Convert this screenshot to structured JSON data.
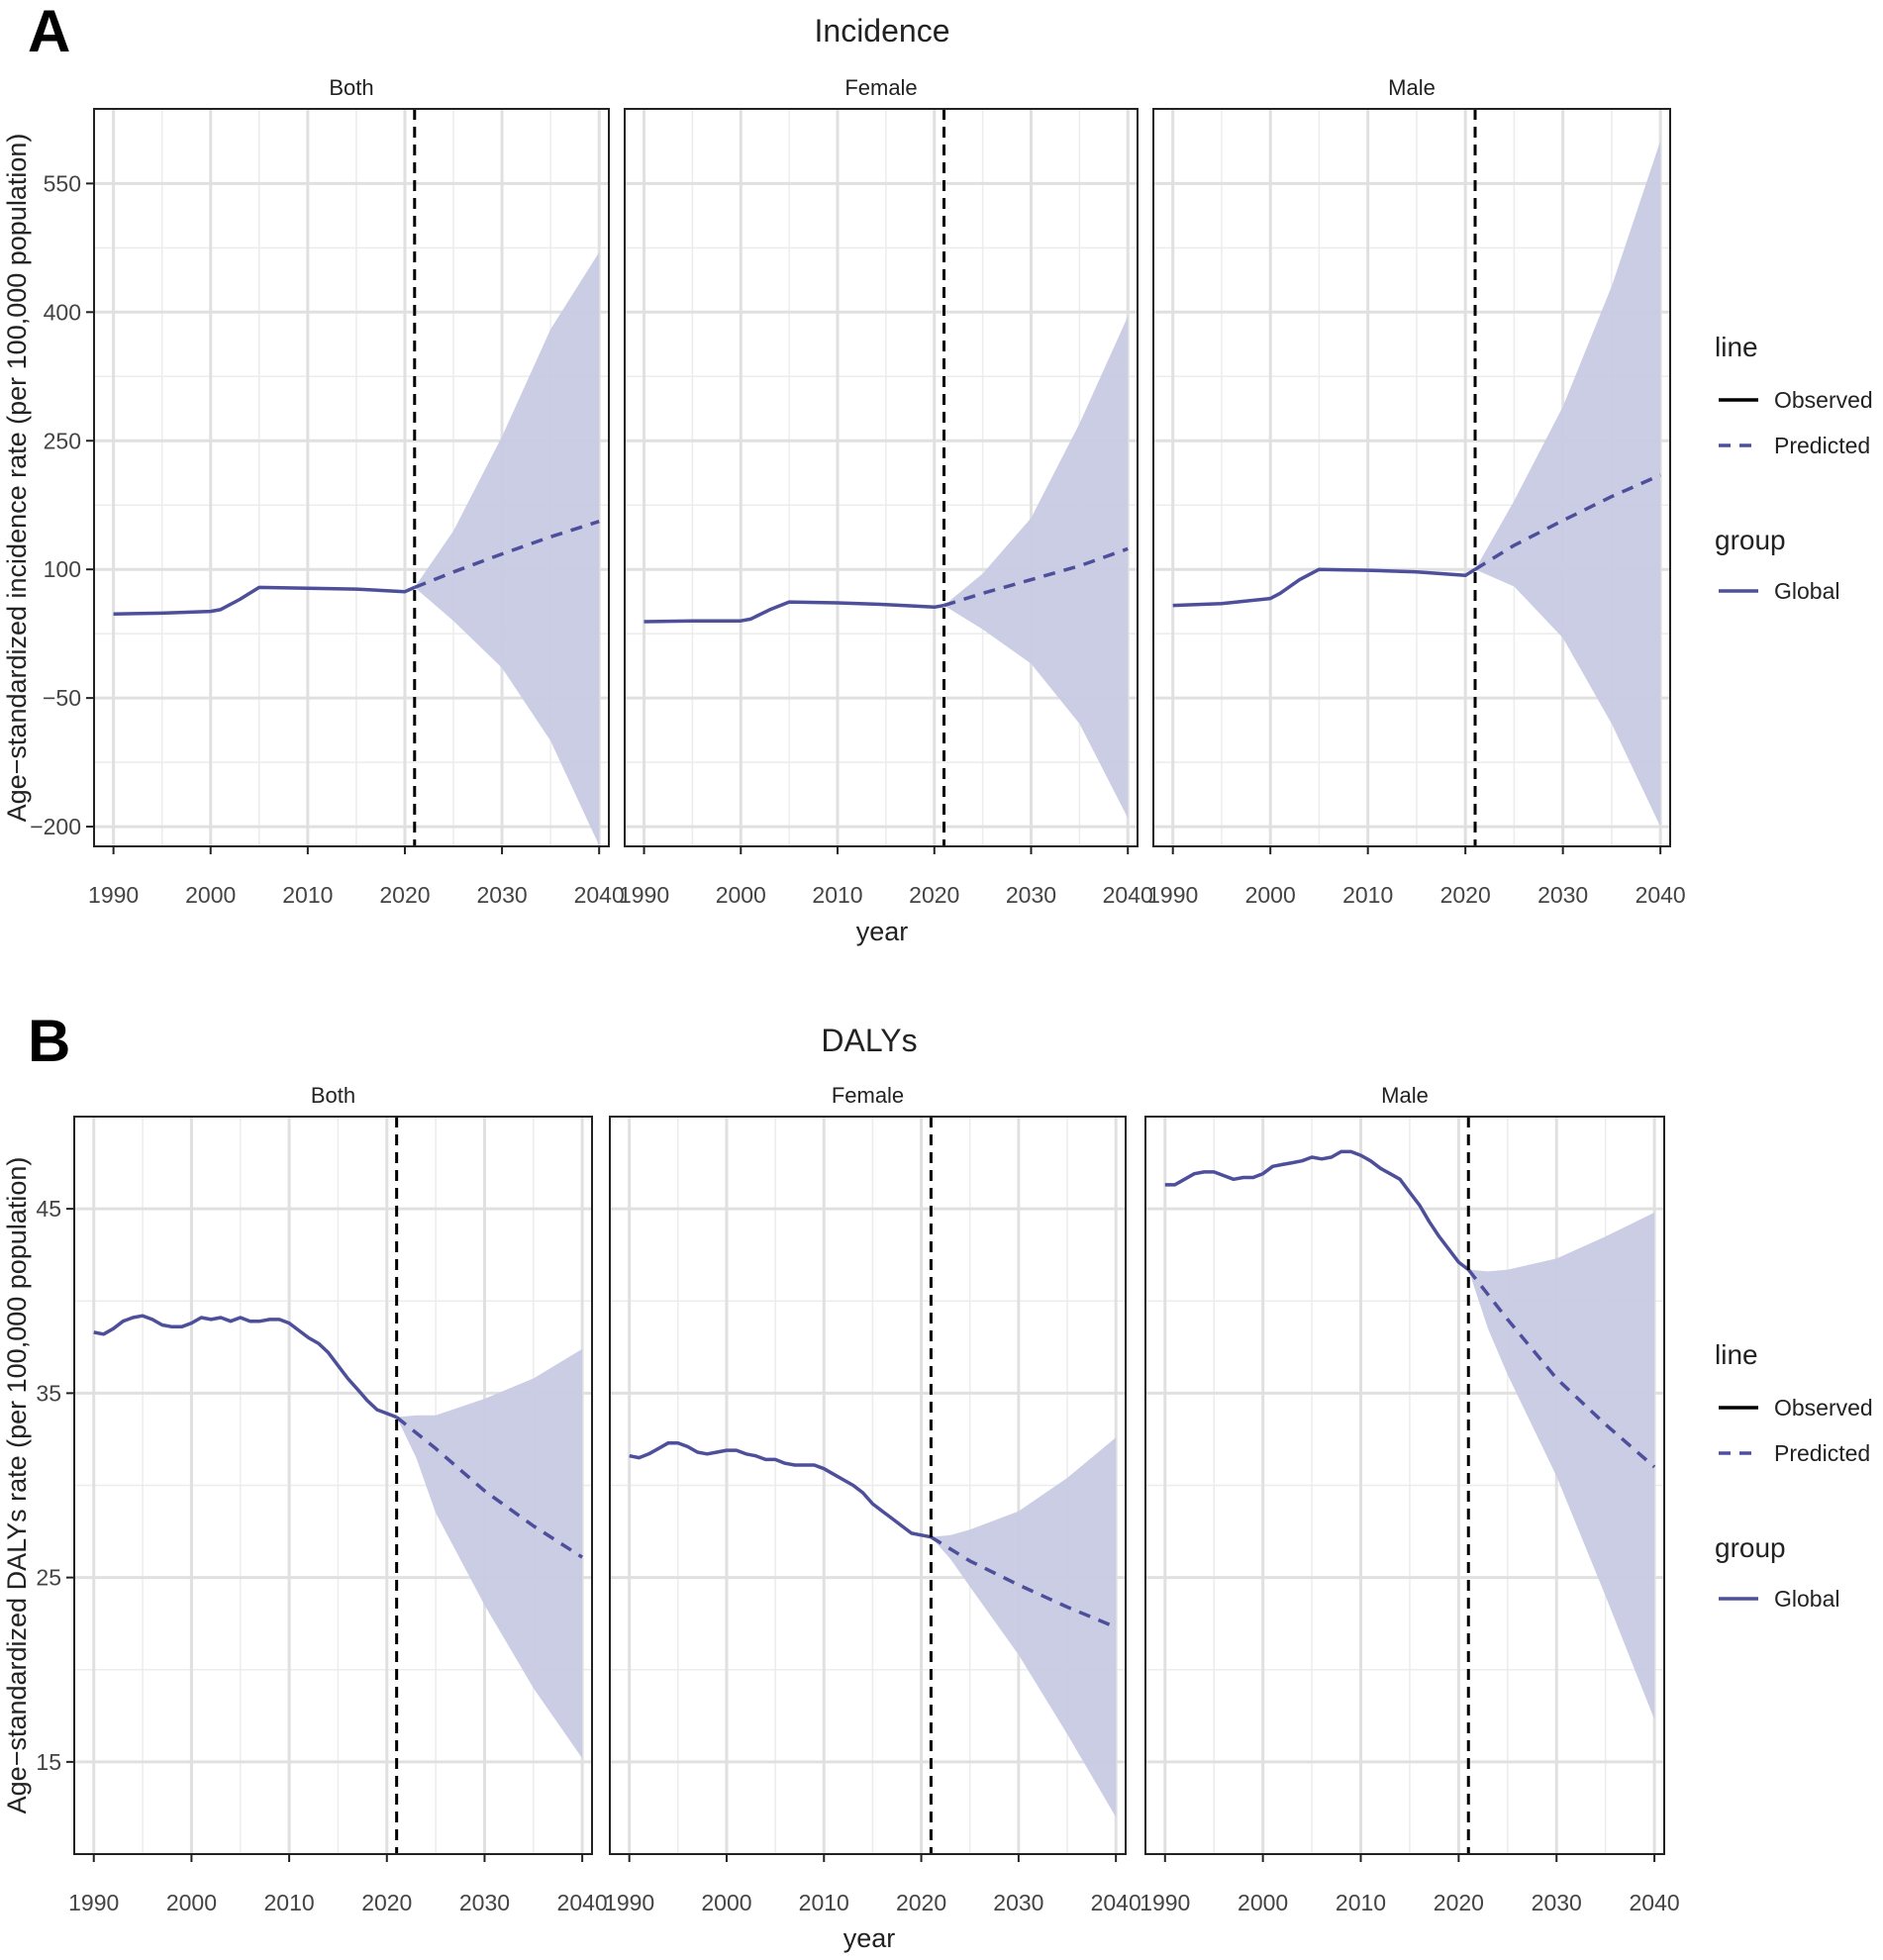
{
  "chart_data": [
    {
      "panel_letter": "A",
      "type": "line",
      "title": "Incidence",
      "xlabel": "year",
      "ylabel": "Age−standardized incidence rate (per 100,000 population)",
      "xlim": [
        1988,
        2041
      ],
      "ylim": [
        -223,
        637
      ],
      "xticks": [
        1990,
        2000,
        2010,
        2020,
        2030,
        2040
      ],
      "xtick_labels": [
        "1990",
        "2000",
        "2010",
        "2020",
        "2030",
        "2040"
      ],
      "yticks": [
        -200,
        -50,
        100,
        250,
        400,
        550
      ],
      "ytick_labels": [
        "−200",
        "−50",
        "100",
        "250",
        "400",
        "550"
      ],
      "observed_cutoff_year": 2021,
      "facets": [
        {
          "label": "Both",
          "series": [
            {
              "name": "Global",
              "line": "Observed",
              "x": [
                1990,
                1995,
                2000,
                2001,
                2003,
                2005,
                2010,
                2015,
                2020,
                2021
              ],
              "y": [
                48,
                49,
                51,
                53,
                65,
                79,
                78,
                77,
                74,
                79
              ]
            },
            {
              "name": "Global",
              "line": "Predicted",
              "x": [
                2021,
                2025,
                2030,
                2035,
                2040
              ],
              "y": [
                79,
                97,
                118,
                138,
                156
              ]
            }
          ],
          "band": {
            "x": [
              2021,
              2025,
              2030,
              2035,
              2040
            ],
            "lower": [
              79,
              40,
              -15,
              -100,
              -222
            ],
            "upper": [
              79,
              145,
              255,
              380,
              470
            ]
          }
        },
        {
          "label": "Female",
          "series": [
            {
              "name": "Global",
              "line": "Observed",
              "x": [
                1990,
                1995,
                2000,
                2001,
                2003,
                2005,
                2010,
                2015,
                2020,
                2021
              ],
              "y": [
                39,
                40,
                40,
                42,
                53,
                62,
                61,
                59,
                56,
                58
              ]
            },
            {
              "name": "Global",
              "line": "Predicted",
              "x": [
                2021,
                2025,
                2030,
                2035,
                2040
              ],
              "y": [
                58,
                72,
                88,
                104,
                124
              ]
            }
          ],
          "band": {
            "x": [
              2021,
              2025,
              2030,
              2035,
              2040
            ],
            "lower": [
              58,
              30,
              -10,
              -80,
              -190
            ],
            "upper": [
              58,
              95,
              160,
              270,
              395
            ]
          }
        },
        {
          "label": "Male",
          "series": [
            {
              "name": "Global",
              "line": "Observed",
              "x": [
                1990,
                1995,
                2000,
                2001,
                2003,
                2005,
                2010,
                2015,
                2020,
                2021
              ],
              "y": [
                58,
                60,
                66,
                72,
                88,
                100,
                99,
                97,
                93,
                100
              ]
            },
            {
              "name": "Global",
              "line": "Predicted",
              "x": [
                2021,
                2025,
                2030,
                2035,
                2040
              ],
              "y": [
                100,
                128,
                157,
                185,
                210
              ]
            }
          ],
          "band": {
            "x": [
              2021,
              2025,
              2030,
              2035,
              2040
            ],
            "lower": [
              100,
              80,
              20,
              -80,
              -200
            ],
            "upper": [
              100,
              180,
              290,
              430,
              600
            ]
          }
        }
      ],
      "legend": {
        "placement": "right",
        "line_title": "line",
        "line_entries": [
          "Observed",
          "Predicted"
        ],
        "group_title": "group",
        "group_entries": [
          "Global"
        ]
      }
    },
    {
      "panel_letter": "B",
      "type": "line",
      "title": "DALYs",
      "xlabel": "year",
      "ylabel": "Age−standardized DALYs rate (per 100,000 population)",
      "xlim": [
        1988,
        2041
      ],
      "ylim": [
        10,
        50
      ],
      "xticks": [
        1990,
        2000,
        2010,
        2020,
        2030,
        2040
      ],
      "xtick_labels": [
        "1990",
        "2000",
        "2010",
        "2020",
        "2030",
        "2040"
      ],
      "yticks": [
        15,
        25,
        35,
        45
      ],
      "ytick_labels": [
        "15",
        "25",
        "35",
        "45"
      ],
      "observed_cutoff_year": 2021,
      "facets": [
        {
          "label": "Both",
          "series": [
            {
              "name": "Global",
              "line": "Observed",
              "x": [
                1990,
                1991,
                1992,
                1993,
                1994,
                1995,
                1996,
                1997,
                1998,
                1999,
                2000,
                2001,
                2002,
                2003,
                2004,
                2005,
                2006,
                2007,
                2008,
                2009,
                2010,
                2011,
                2012,
                2013,
                2014,
                2015,
                2016,
                2017,
                2018,
                2019,
                2020,
                2021
              ],
              "y": [
                38.3,
                38.2,
                38.5,
                38.9,
                39.1,
                39.2,
                39.0,
                38.7,
                38.6,
                38.6,
                38.8,
                39.1,
                39.0,
                39.1,
                38.9,
                39.1,
                38.9,
                38.9,
                39.0,
                39.0,
                38.8,
                38.4,
                38.0,
                37.7,
                37.2,
                36.5,
                35.8,
                35.2,
                34.6,
                34.1,
                33.9,
                33.7
              ]
            },
            {
              "name": "Global",
              "line": "Predicted",
              "x": [
                2021,
                2025,
                2030,
                2035,
                2040
              ],
              "y": [
                33.7,
                32.0,
                29.7,
                27.8,
                26.1
              ]
            }
          ],
          "band": {
            "x": [
              2021,
              2023,
              2025,
              2030,
              2035,
              2040
            ],
            "lower": [
              33.7,
              31.5,
              28.5,
              23.5,
              19.0,
              15.2
            ],
            "upper": [
              33.7,
              33.8,
              33.8,
              34.7,
              35.8,
              37.4
            ]
          }
        },
        {
          "label": "Female",
          "series": [
            {
              "name": "Global",
              "line": "Observed",
              "x": [
                1990,
                1991,
                1992,
                1993,
                1994,
                1995,
                1996,
                1997,
                1998,
                1999,
                2000,
                2001,
                2002,
                2003,
                2004,
                2005,
                2006,
                2007,
                2008,
                2009,
                2010,
                2011,
                2012,
                2013,
                2014,
                2015,
                2016,
                2017,
                2018,
                2019,
                2020,
                2021
              ],
              "y": [
                31.6,
                31.5,
                31.7,
                32.0,
                32.3,
                32.3,
                32.1,
                31.8,
                31.7,
                31.8,
                31.9,
                31.9,
                31.7,
                31.6,
                31.4,
                31.4,
                31.2,
                31.1,
                31.1,
                31.1,
                30.9,
                30.6,
                30.3,
                30.0,
                29.6,
                29.0,
                28.6,
                28.2,
                27.8,
                27.4,
                27.3,
                27.2
              ]
            },
            {
              "name": "Global",
              "line": "Predicted",
              "x": [
                2021,
                2025,
                2030,
                2035,
                2040
              ],
              "y": [
                27.2,
                25.9,
                24.6,
                23.4,
                22.3
              ]
            }
          ],
          "band": {
            "x": [
              2021,
              2023,
              2025,
              2030,
              2035,
              2040
            ],
            "lower": [
              27.2,
              26.0,
              24.5,
              20.8,
              16.5,
              12.0
            ],
            "upper": [
              27.2,
              27.3,
              27.6,
              28.6,
              30.4,
              32.6
            ]
          }
        },
        {
          "label": "Male",
          "series": [
            {
              "name": "Global",
              "line": "Observed",
              "x": [
                1990,
                1991,
                1992,
                1993,
                1994,
                1995,
                1996,
                1997,
                1998,
                1999,
                2000,
                2001,
                2002,
                2003,
                2004,
                2005,
                2006,
                2007,
                2008,
                2009,
                2010,
                2011,
                2012,
                2013,
                2014,
                2015,
                2016,
                2017,
                2018,
                2019,
                2020,
                2021
              ],
              "y": [
                46.3,
                46.3,
                46.6,
                46.9,
                47.0,
                47.0,
                46.8,
                46.6,
                46.7,
                46.7,
                46.9,
                47.3,
                47.4,
                47.5,
                47.6,
                47.8,
                47.7,
                47.8,
                48.1,
                48.1,
                47.9,
                47.6,
                47.2,
                46.9,
                46.6,
                45.9,
                45.2,
                44.3,
                43.5,
                42.8,
                42.1,
                41.7
              ]
            },
            {
              "name": "Global",
              "line": "Predicted",
              "x": [
                2021,
                2025,
                2030,
                2035,
                2040
              ],
              "y": [
                41.7,
                39.0,
                35.8,
                33.3,
                31.0
              ]
            }
          ],
          "band": {
            "x": [
              2021,
              2023,
              2025,
              2030,
              2035,
              2040
            ],
            "lower": [
              41.7,
              38.5,
              36.0,
              30.5,
              24.0,
              17.3
            ],
            "upper": [
              41.7,
              41.6,
              41.7,
              42.3,
              43.5,
              44.8
            ]
          }
        }
      ],
      "legend": {
        "placement": "right",
        "line_title": "line",
        "line_entries": [
          "Observed",
          "Predicted"
        ],
        "group_title": "group",
        "group_entries": [
          "Global"
        ]
      }
    }
  ],
  "colors": {
    "series": "#4e4f9b",
    "band": "#c8cae4",
    "observed_line": "#000000",
    "grid": "#e0e0e0",
    "frame": "#222222",
    "text": "#222222"
  }
}
